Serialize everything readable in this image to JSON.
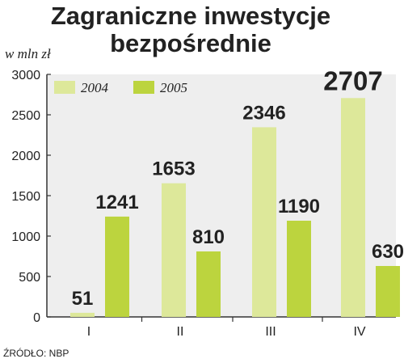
{
  "chart_data": {
    "type": "bar",
    "title_lines": [
      "Zagraniczne inwestycje",
      "bezpośrednie"
    ],
    "unit_label": "w mln zł",
    "categories": [
      "I",
      "II",
      "III",
      "IV"
    ],
    "series": [
      {
        "name": "2004",
        "values": [
          51,
          1653,
          2346,
          2707
        ],
        "color": "#dde89a"
      },
      {
        "name": "2005",
        "values": [
          1241,
          810,
          1190,
          630
        ],
        "color": "#bcd43e"
      }
    ],
    "data_labels": [
      [
        "51",
        "1653",
        "2346",
        "2707"
      ],
      [
        "1241",
        "810",
        "1190",
        "630"
      ]
    ],
    "highlight": {
      "series": 0,
      "index": 3,
      "color": "#d3344e"
    },
    "yticks": [
      0,
      500,
      1000,
      1500,
      2000,
      2500,
      3000
    ],
    "ylim": [
      0,
      3000
    ],
    "grid": false,
    "legend_position": "top-left",
    "plot_background": "#eeeeee",
    "source": "ŹRÓDŁO: NBP"
  }
}
